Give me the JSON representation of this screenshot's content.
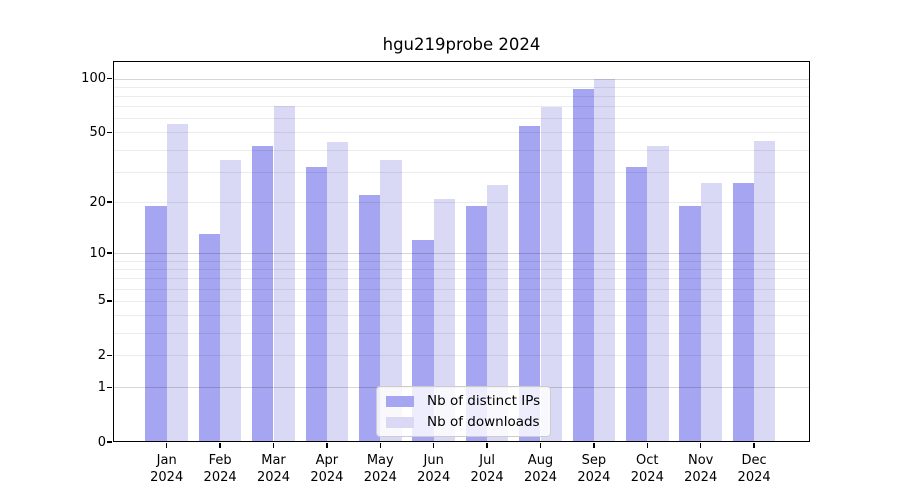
{
  "chart_data": {
    "type": "bar",
    "title": "hgu219probe 2024",
    "categories": [
      "Jan 2024",
      "Feb 2024",
      "Mar 2024",
      "Apr 2024",
      "May 2024",
      "Jun 2024",
      "Jul 2024",
      "Aug 2024",
      "Sep 2024",
      "Oct 2024",
      "Nov 2024",
      "Dec 2024"
    ],
    "series": [
      {
        "name": "Nb of distinct IPs",
        "color": "#a5a5f2",
        "values": [
          19,
          13,
          42,
          32,
          22,
          12,
          19,
          54,
          88,
          32,
          19,
          26
        ]
      },
      {
        "name": "Nb of downloads",
        "color": "#d9d9f6",
        "values": [
          56,
          35,
          70,
          44,
          35,
          21,
          25,
          69,
          100,
          42,
          26,
          45
        ]
      }
    ],
    "y_scale": "log1p",
    "ylim": [
      0,
      101
    ],
    "y_tick_labels": [
      "100",
      "50",
      "20",
      "10",
      "5",
      "2",
      "1",
      "0"
    ],
    "y_tick_values": [
      100,
      50,
      20,
      10,
      5,
      2,
      1,
      0
    ],
    "y_minor_gridlines": [
      2,
      3,
      4,
      5,
      6,
      7,
      8,
      9,
      20,
      30,
      40,
      50,
      60,
      70,
      80,
      90
    ],
    "y_major_gridlines": [
      1,
      10,
      100
    ],
    "grid": true,
    "legend_position": "bottom-center"
  },
  "colors": {
    "background": "#ffffff",
    "axis_spine": "#000000",
    "tick_label": "#000000",
    "legend_border": "#cccccc",
    "gridline_minor": "#ececec",
    "gridline_major": "#d6d6d6"
  }
}
